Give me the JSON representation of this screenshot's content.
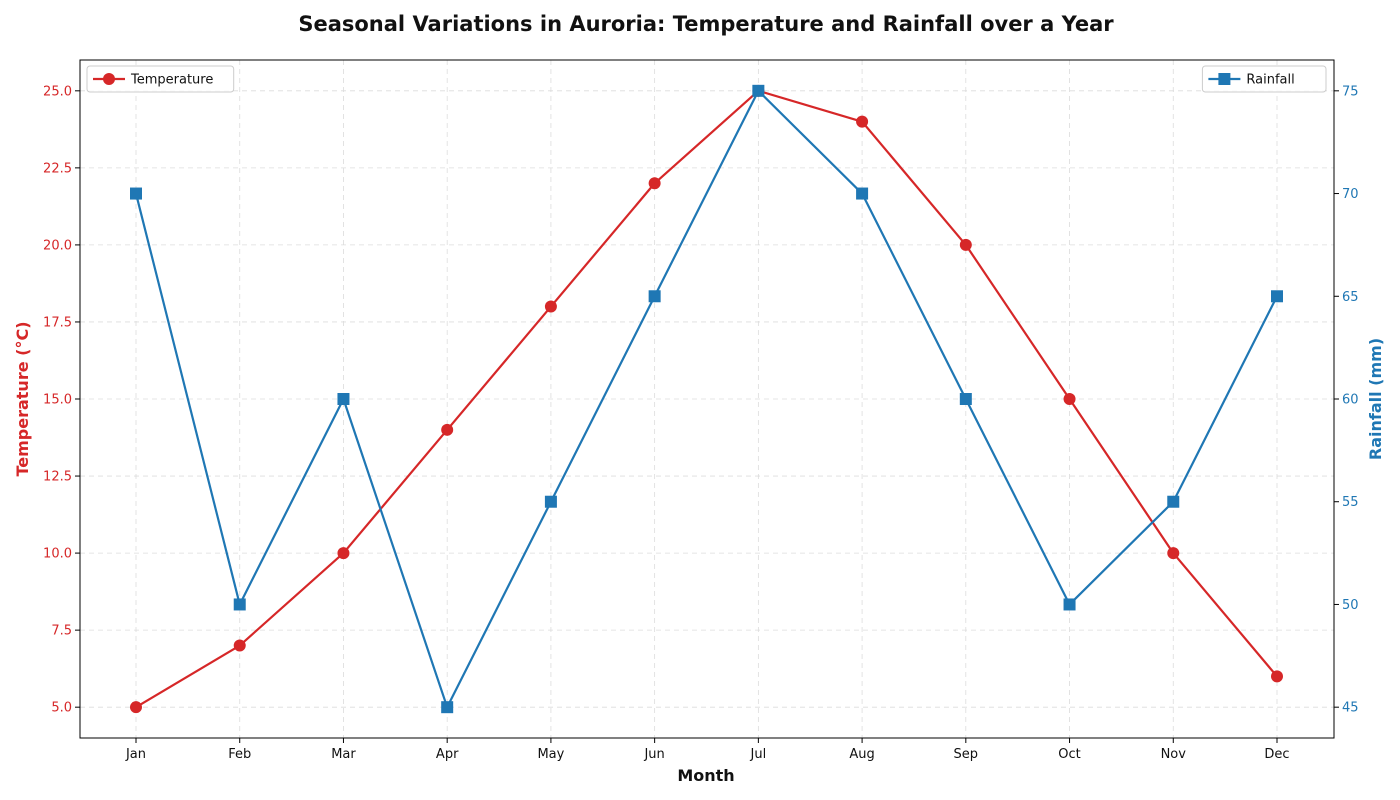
{
  "chart_data": {
    "type": "line",
    "title": "Seasonal Variations in Auroria: Temperature and Rainfall over a Year",
    "xlabel": "Month",
    "categories": [
      "Jan",
      "Feb",
      "Mar",
      "Apr",
      "May",
      "Jun",
      "Jul",
      "Aug",
      "Sep",
      "Oct",
      "Nov",
      "Dec"
    ],
    "grid": true,
    "series": [
      {
        "name": "Temperature",
        "axis": "left",
        "color": "#d62728",
        "marker": "circle",
        "values": [
          5,
          7,
          10,
          14,
          18,
          22,
          25,
          24,
          20,
          15,
          10,
          6
        ]
      },
      {
        "name": "Rainfall",
        "axis": "right",
        "color": "#1f77b4",
        "marker": "square",
        "values": [
          70,
          50,
          60,
          45,
          55,
          65,
          75,
          70,
          60,
          50,
          55,
          65
        ]
      }
    ],
    "y_left": {
      "label": "Temperature (°C)",
      "range": [
        4,
        26
      ],
      "ticks": [
        5.0,
        7.5,
        10.0,
        12.5,
        15.0,
        17.5,
        20.0,
        22.5,
        25.0
      ],
      "tick_labels": [
        "5.0",
        "7.5",
        "10.0",
        "12.5",
        "15.0",
        "17.5",
        "20.0",
        "22.5",
        "25.0"
      ],
      "color": "#d62728"
    },
    "y_right": {
      "label": "Rainfall (mm)",
      "range": [
        43.5,
        76.5
      ],
      "ticks": [
        45,
        50,
        55,
        60,
        65,
        70,
        75
      ],
      "tick_labels": [
        "45",
        "50",
        "55",
        "60",
        "65",
        "70",
        "75"
      ],
      "color": "#1f77b4"
    },
    "legends": [
      {
        "series": "Temperature",
        "placement": "top-left"
      },
      {
        "series": "Rainfall",
        "placement": "top-right"
      }
    ]
  }
}
